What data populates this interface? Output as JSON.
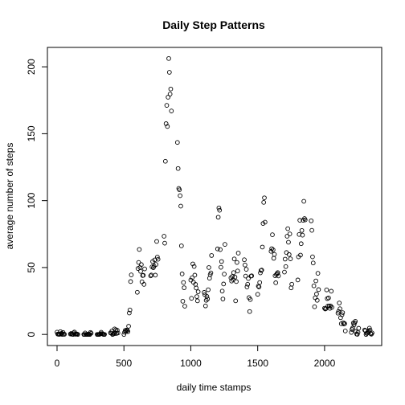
{
  "chart_data": {
    "type": "scatter",
    "title": "Daily Step Patterns",
    "xlabel": "daily time stamps",
    "ylabel": "average number of steps",
    "xlim": [
      -72,
      2427
    ],
    "ylim": [
      -8.3,
      214.5
    ],
    "x_ticks": [
      0,
      500,
      1000,
      1500,
      2000
    ],
    "y_ticks": [
      0,
      50,
      100,
      150,
      200
    ],
    "grid": false,
    "marker": "open-circle",
    "points": [
      [
        0,
        1.7
      ],
      [
        5,
        0.3
      ],
      [
        10,
        0.1
      ],
      [
        15,
        0.2
      ],
      [
        20,
        0.1
      ],
      [
        25,
        2.1
      ],
      [
        30,
        0.5
      ],
      [
        35,
        0.9
      ],
      [
        40,
        0.0
      ],
      [
        45,
        1.5
      ],
      [
        50,
        0.3
      ],
      [
        55,
        0.1
      ],
      [
        100,
        0.3
      ],
      [
        105,
        0.7
      ],
      [
        110,
        0.2
      ],
      [
        115,
        0.3
      ],
      [
        120,
        0.0
      ],
      [
        125,
        1.1
      ],
      [
        130,
        1.8
      ],
      [
        135,
        0.2
      ],
      [
        140,
        0.2
      ],
      [
        145,
        0.4
      ],
      [
        150,
        0.3
      ],
      [
        155,
        0.0
      ],
      [
        200,
        0.0
      ],
      [
        205,
        0.0
      ],
      [
        210,
        1.1
      ],
      [
        215,
        0.0
      ],
      [
        220,
        0.0
      ],
      [
        225,
        0.1
      ],
      [
        230,
        0.0
      ],
      [
        235,
        0.2
      ],
      [
        240,
        0.0
      ],
      [
        245,
        0.0
      ],
      [
        250,
        1.5
      ],
      [
        255,
        0.9
      ],
      [
        300,
        0.0
      ],
      [
        305,
        0.0
      ],
      [
        310,
        0.0
      ],
      [
        315,
        0.0
      ],
      [
        320,
        0.2
      ],
      [
        325,
        0.6
      ],
      [
        330,
        1.6
      ],
      [
        335,
        0.6
      ],
      [
        340,
        0.5
      ],
      [
        345,
        0.1
      ],
      [
        350,
        0.0
      ],
      [
        355,
        0.0
      ],
      [
        400,
        1.2
      ],
      [
        405,
        0.9
      ],
      [
        410,
        2.6
      ],
      [
        415,
        0.0
      ],
      [
        420,
        0.3
      ],
      [
        425,
        0.9
      ],
      [
        430,
        4.1
      ],
      [
        435,
        0.7
      ],
      [
        440,
        3.5
      ],
      [
        445,
        0.8
      ],
      [
        450,
        3.1
      ],
      [
        455,
        1.1
      ],
      [
        500,
        0.0
      ],
      [
        505,
        1.6
      ],
      [
        510,
        3.0
      ],
      [
        515,
        2.2
      ],
      [
        520,
        3.3
      ],
      [
        525,
        3.0
      ],
      [
        530,
        2.1
      ],
      [
        535,
        6.1
      ],
      [
        540,
        16.0
      ],
      [
        545,
        18.3
      ],
      [
        550,
        39.5
      ],
      [
        555,
        44.5
      ],
      [
        600,
        31.5
      ],
      [
        605,
        49.3
      ],
      [
        610,
        53.8
      ],
      [
        615,
        63.5
      ],
      [
        620,
        50.0
      ],
      [
        625,
        47.1
      ],
      [
        630,
        52.2
      ],
      [
        635,
        39.3
      ],
      [
        640,
        44.0
      ],
      [
        645,
        44.2
      ],
      [
        650,
        37.4
      ],
      [
        655,
        49.0
      ],
      [
        700,
        43.8
      ],
      [
        705,
        44.4
      ],
      [
        710,
        50.5
      ],
      [
        715,
        54.5
      ],
      [
        720,
        49.9
      ],
      [
        725,
        51.0
      ],
      [
        730,
        55.7
      ],
      [
        735,
        44.3
      ],
      [
        740,
        52.3
      ],
      [
        745,
        69.5
      ],
      [
        750,
        57.8
      ],
      [
        755,
        56.2
      ],
      [
        800,
        73.4
      ],
      [
        805,
        68.2
      ],
      [
        810,
        129.4
      ],
      [
        815,
        157.5
      ],
      [
        820,
        171.2
      ],
      [
        825,
        155.4
      ],
      [
        830,
        177.3
      ],
      [
        835,
        206.2
      ],
      [
        840,
        195.9
      ],
      [
        845,
        179.6
      ],
      [
        850,
        183.4
      ],
      [
        855,
        167.0
      ],
      [
        900,
        143.5
      ],
      [
        905,
        124.0
      ],
      [
        910,
        109.1
      ],
      [
        915,
        108.1
      ],
      [
        920,
        103.7
      ],
      [
        925,
        95.9
      ],
      [
        930,
        66.2
      ],
      [
        935,
        45.2
      ],
      [
        940,
        24.8
      ],
      [
        945,
        38.8
      ],
      [
        950,
        34.9
      ],
      [
        955,
        21.1
      ],
      [
        1000,
        40.6
      ],
      [
        1005,
        27.0
      ],
      [
        1010,
        42.4
      ],
      [
        1015,
        52.7
      ],
      [
        1020,
        38.9
      ],
      [
        1025,
        50.8
      ],
      [
        1030,
        44.3
      ],
      [
        1035,
        37.4
      ],
      [
        1040,
        34.7
      ],
      [
        1045,
        28.3
      ],
      [
        1050,
        25.1
      ],
      [
        1055,
        31.9
      ],
      [
        1100,
        31.4
      ],
      [
        1105,
        29.7
      ],
      [
        1110,
        21.3
      ],
      [
        1115,
        25.5
      ],
      [
        1120,
        28.4
      ],
      [
        1125,
        26.5
      ],
      [
        1130,
        33.4
      ],
      [
        1135,
        50.0
      ],
      [
        1140,
        42.0
      ],
      [
        1145,
        44.6
      ],
      [
        1150,
        46.0
      ],
      [
        1155,
        59.0
      ],
      [
        1200,
        63.9
      ],
      [
        1205,
        87.6
      ],
      [
        1210,
        94.5
      ],
      [
        1215,
        92.8
      ],
      [
        1220,
        63.4
      ],
      [
        1225,
        50.2
      ],
      [
        1230,
        54.5
      ],
      [
        1235,
        32.4
      ],
      [
        1240,
        26.5
      ],
      [
        1245,
        37.7
      ],
      [
        1250,
        45.1
      ],
      [
        1255,
        67.3
      ],
      [
        1300,
        42.3
      ],
      [
        1305,
        39.9
      ],
      [
        1310,
        43.3
      ],
      [
        1315,
        41.0
      ],
      [
        1320,
        46.2
      ],
      [
        1325,
        56.4
      ],
      [
        1330,
        42.8
      ],
      [
        1335,
        25.1
      ],
      [
        1340,
        39.5
      ],
      [
        1345,
        53.8
      ],
      [
        1350,
        47.4
      ],
      [
        1355,
        60.8
      ],
      [
        1400,
        55.8
      ],
      [
        1405,
        51.9
      ],
      [
        1410,
        43.6
      ],
      [
        1415,
        48.7
      ],
      [
        1420,
        35.5
      ],
      [
        1425,
        37.5
      ],
      [
        1430,
        41.8
      ],
      [
        1435,
        27.5
      ],
      [
        1440,
        17.1
      ],
      [
        1445,
        26.1
      ],
      [
        1450,
        43.6
      ],
      [
        1455,
        43.8
      ],
      [
        1500,
        30.0
      ],
      [
        1505,
        36.1
      ],
      [
        1510,
        35.5
      ],
      [
        1515,
        38.8
      ],
      [
        1520,
        46.0
      ],
      [
        1525,
        47.8
      ],
      [
        1530,
        48.1
      ],
      [
        1535,
        65.3
      ],
      [
        1540,
        82.9
      ],
      [
        1545,
        98.7
      ],
      [
        1550,
        102.1
      ],
      [
        1555,
        83.9
      ],
      [
        1600,
        62.1
      ],
      [
        1605,
        64.1
      ],
      [
        1610,
        74.5
      ],
      [
        1615,
        63.2
      ],
      [
        1620,
        56.9
      ],
      [
        1625,
        59.8
      ],
      [
        1630,
        43.9
      ],
      [
        1635,
        38.6
      ],
      [
        1640,
        44.7
      ],
      [
        1645,
        45.5
      ],
      [
        1650,
        46.2
      ],
      [
        1655,
        43.7
      ],
      [
        1700,
        46.6
      ],
      [
        1705,
        56.3
      ],
      [
        1710,
        50.7
      ],
      [
        1715,
        61.2
      ],
      [
        1720,
        73.4
      ],
      [
        1725,
        79.0
      ],
      [
        1730,
        68.9
      ],
      [
        1735,
        59.7
      ],
      [
        1740,
        75.1
      ],
      [
        1745,
        56.5
      ],
      [
        1750,
        34.8
      ],
      [
        1755,
        37.5
      ],
      [
        1800,
        40.7
      ],
      [
        1805,
        58.0
      ],
      [
        1810,
        74.7
      ],
      [
        1815,
        85.3
      ],
      [
        1820,
        59.3
      ],
      [
        1825,
        67.8
      ],
      [
        1830,
        77.7
      ],
      [
        1835,
        74.2
      ],
      [
        1840,
        85.3
      ],
      [
        1845,
        99.5
      ],
      [
        1850,
        86.6
      ],
      [
        1855,
        85.6
      ],
      [
        1900,
        84.9
      ],
      [
        1905,
        77.8
      ],
      [
        1910,
        58.0
      ],
      [
        1915,
        53.4
      ],
      [
        1920,
        36.3
      ],
      [
        1925,
        20.7
      ],
      [
        1930,
        27.4
      ],
      [
        1935,
        40.0
      ],
      [
        1940,
        30.2
      ],
      [
        1945,
        25.5
      ],
      [
        1950,
        45.7
      ],
      [
        1955,
        33.5
      ],
      [
        2000,
        19.6
      ],
      [
        2005,
        19.0
      ],
      [
        2010,
        19.3
      ],
      [
        2015,
        33.3
      ],
      [
        2020,
        26.8
      ],
      [
        2025,
        21.2
      ],
      [
        2030,
        27.3
      ],
      [
        2035,
        21.3
      ],
      [
        2040,
        19.5
      ],
      [
        2045,
        21.3
      ],
      [
        2050,
        32.3
      ],
      [
        2055,
        20.2
      ],
      [
        2100,
        15.9
      ],
      [
        2105,
        17.2
      ],
      [
        2110,
        23.5
      ],
      [
        2115,
        19.2
      ],
      [
        2120,
        12.5
      ],
      [
        2125,
        8.0
      ],
      [
        2130,
        14.7
      ],
      [
        2135,
        16.3
      ],
      [
        2140,
        8.7
      ],
      [
        2145,
        7.8
      ],
      [
        2150,
        8.1
      ],
      [
        2155,
        2.6
      ],
      [
        2200,
        1.5
      ],
      [
        2205,
        3.7
      ],
      [
        2210,
        4.8
      ],
      [
        2215,
        8.5
      ],
      [
        2220,
        7.1
      ],
      [
        2225,
        8.7
      ],
      [
        2230,
        9.8
      ],
      [
        2235,
        2.2
      ],
      [
        2240,
        0.3
      ],
      [
        2245,
        0.1
      ],
      [
        2250,
        1.6
      ],
      [
        2255,
        4.6
      ],
      [
        2300,
        3.3
      ],
      [
        2305,
        2.8
      ],
      [
        2310,
        0.0
      ],
      [
        2315,
        0.8
      ],
      [
        2320,
        1.0
      ],
      [
        2325,
        1.6
      ],
      [
        2330,
        2.6
      ],
      [
        2335,
        4.7
      ],
      [
        2340,
        3.3
      ],
      [
        2345,
        0.6
      ],
      [
        2350,
        0.2
      ],
      [
        2355,
        1.1
      ]
    ]
  }
}
